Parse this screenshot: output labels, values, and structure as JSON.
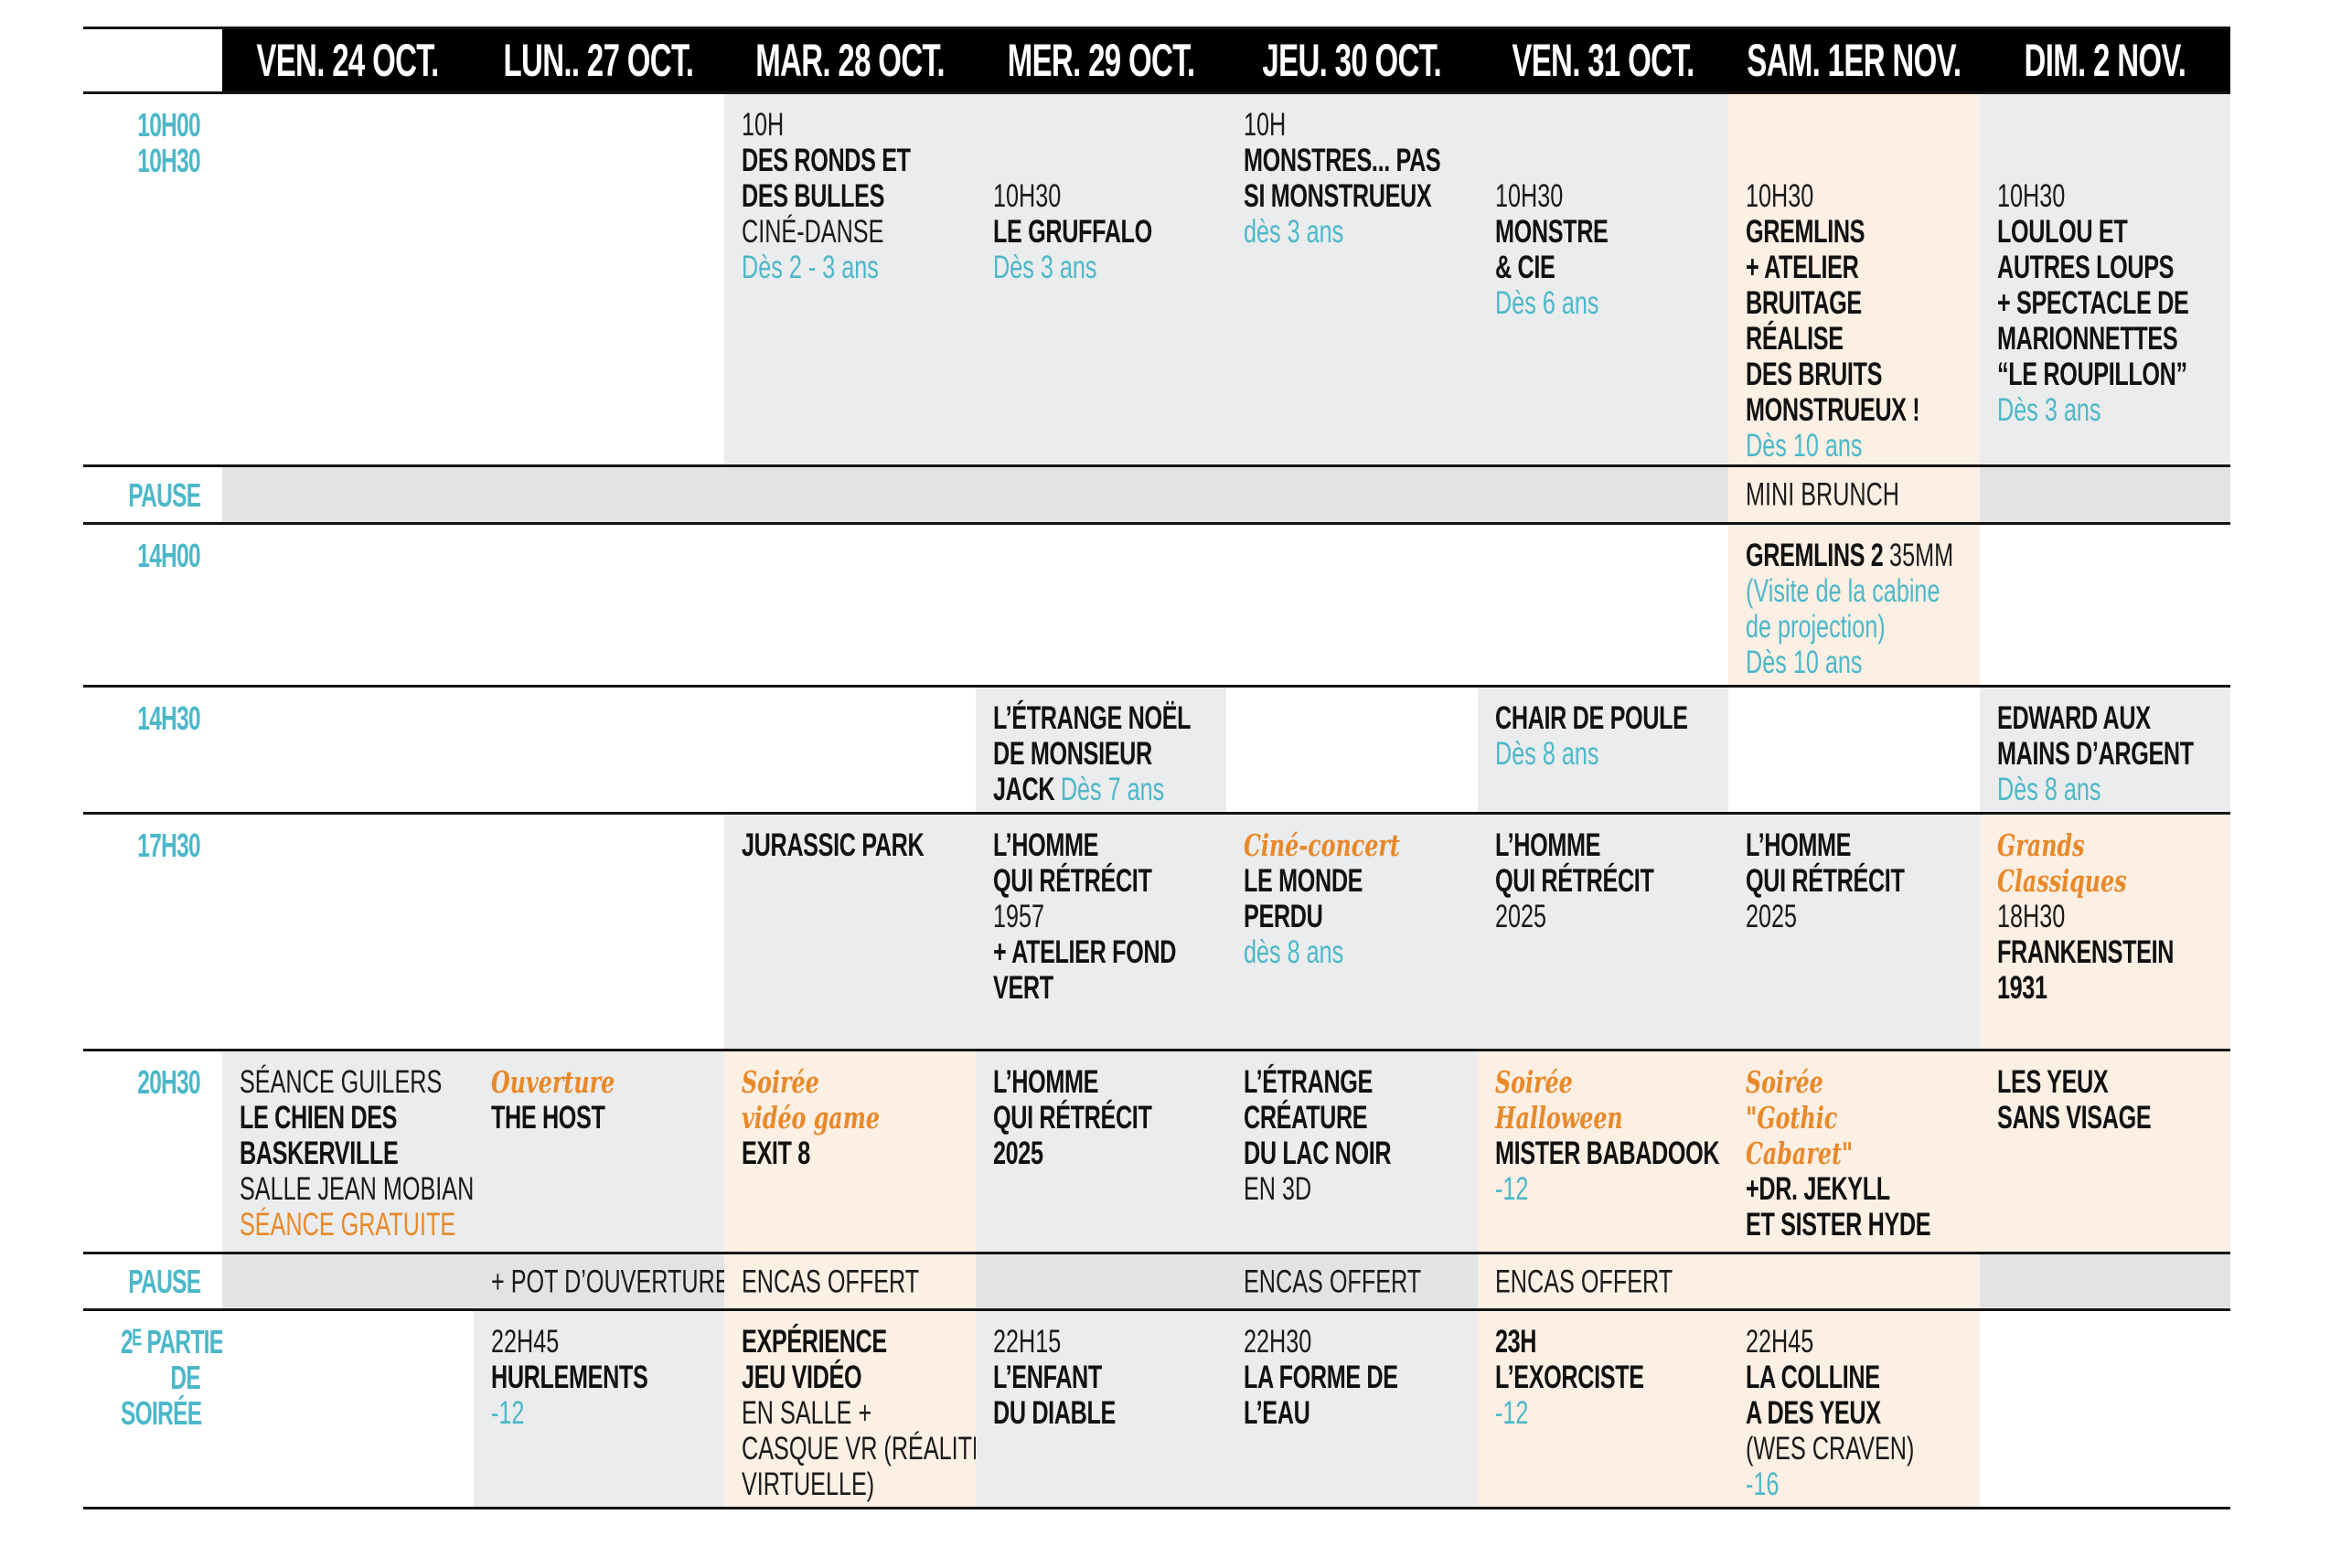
{
  "colors": {
    "teal": "#4cb8c9",
    "orange": "#e8892a",
    "grey": "#ebeced",
    "pause_grey": "#e2e3e5",
    "peach": "#fcefe4",
    "header": "#000000"
  },
  "days": [
    "VEN. 24 OCT.",
    "LUN.. 27 OCT.",
    "MAR. 28 OCT.",
    "MER. 29 OCT.",
    "JEU. 30 OCT.",
    "VEN. 31 OCT.",
    "SAM. 1ER NOV.",
    "DIM. 2 NOV."
  ],
  "rows": [
    {
      "label": [
        "10H00",
        "10H30"
      ],
      "type": "slot",
      "cells": [
        {
          "bg": "w",
          "lines": []
        },
        {
          "bg": "w",
          "lines": []
        },
        {
          "bg": "g",
          "lines": [
            [
              [
                "t",
                "10H"
              ]
            ],
            [
              [
                "b",
                "DES RONDS ET"
              ]
            ],
            [
              [
                "b",
                "DES BULLES"
              ]
            ],
            [
              [
                "l",
                "CINÉ-DANSE"
              ]
            ],
            [
              [
                "a",
                "Dès  2 - 3 ans"
              ]
            ]
          ]
        },
        {
          "bg": "g",
          "lines": [
            [
              [
                "t",
                "10H30"
              ]
            ],
            [
              [
                "b",
                "LE GRUFFALO"
              ]
            ],
            [
              [
                "a",
                "Dès 3 ans"
              ]
            ]
          ]
        },
        {
          "bg": "g",
          "lines": [
            [
              [
                "t",
                "10H"
              ]
            ],
            [
              [
                "b",
                "MONSTRES... PAS"
              ]
            ],
            [
              [
                "b",
                "SI MONSTRUEUX"
              ]
            ],
            [
              [
                "a",
                "dès 3 ans"
              ]
            ]
          ]
        },
        {
          "bg": "g",
          "lines": [
            [
              [
                "t",
                "10H30"
              ]
            ],
            [
              [
                "b",
                "MONSTRE"
              ]
            ],
            [
              [
                "b",
                "& CIE"
              ]
            ],
            [
              [
                "a",
                "Dès 6 ans"
              ]
            ]
          ]
        },
        {
          "bg": "p",
          "lines": [
            [
              [
                "t",
                "10H30"
              ]
            ],
            [
              [
                "b",
                "GREMLINS"
              ]
            ],
            [
              [
                "b",
                "+ ATELIER"
              ]
            ],
            [
              [
                "b",
                "BRUITAGE"
              ]
            ],
            [
              [
                "b",
                "RÉALISE"
              ]
            ],
            [
              [
                "b",
                "DES BRUITS"
              ]
            ],
            [
              [
                "b",
                "MONSTRUEUX !"
              ]
            ],
            [
              [
                "a",
                "Dès 10 ans"
              ]
            ]
          ]
        },
        {
          "bg": "g",
          "lines": [
            [
              [
                "t",
                "10H30"
              ]
            ],
            [
              [
                "b",
                "LOULOU ET"
              ]
            ],
            [
              [
                "b",
                "AUTRES LOUPS"
              ]
            ],
            [
              [
                "b",
                "+ SPECTACLE DE"
              ]
            ],
            [
              [
                "b",
                " MARIONNETTES"
              ]
            ],
            [
              [
                "b",
                "“LE ROUPILLON”"
              ]
            ],
            [
              [
                "a",
                "Dès 3 ans"
              ]
            ]
          ]
        }
      ]
    },
    {
      "label": [
        "PAUSE"
      ],
      "type": "pause",
      "cells": [
        {
          "bg": "g",
          "lines": []
        },
        {
          "bg": "g",
          "lines": []
        },
        {
          "bg": "g",
          "lines": []
        },
        {
          "bg": "g",
          "lines": []
        },
        {
          "bg": "g",
          "lines": []
        },
        {
          "bg": "g",
          "lines": []
        },
        {
          "bg": "p",
          "lines": [
            [
              [
                "l",
                "MINI BRUNCH"
              ]
            ]
          ]
        },
        {
          "bg": "g",
          "lines": []
        }
      ]
    },
    {
      "label": [
        "14H00"
      ],
      "type": "slot",
      "cells": [
        {
          "bg": "w",
          "lines": []
        },
        {
          "bg": "w",
          "lines": []
        },
        {
          "bg": "w",
          "lines": []
        },
        {
          "bg": "w",
          "lines": []
        },
        {
          "bg": "w",
          "lines": []
        },
        {
          "bg": "w",
          "lines": []
        },
        {
          "bg": "p",
          "lines": [
            [
              [
                "b",
                "GREMLINS 2 "
              ],
              [
                "l",
                "35MM"
              ]
            ],
            [
              [
                "a",
                "(Visite de la cabine"
              ]
            ],
            [
              [
                "a",
                "de projection)"
              ]
            ],
            [
              [
                "a",
                "Dès 10 ans"
              ]
            ]
          ]
        },
        {
          "bg": "w",
          "lines": []
        }
      ]
    },
    {
      "label": [
        "14H30"
      ],
      "type": "slot",
      "cells": [
        {
          "bg": "w",
          "lines": []
        },
        {
          "bg": "w",
          "lines": []
        },
        {
          "bg": "w",
          "lines": []
        },
        {
          "bg": "g",
          "lines": [
            [
              [
                "b",
                "L’ÉTRANGE NOËL"
              ]
            ],
            [
              [
                "b",
                "DE MONSIEUR"
              ]
            ],
            [
              [
                "b",
                "JACK "
              ],
              [
                "a",
                "Dès 7 ans"
              ]
            ]
          ]
        },
        {
          "bg": "w",
          "lines": []
        },
        {
          "bg": "g",
          "lines": [
            [
              [
                "b",
                "CHAIR DE POULE"
              ]
            ],
            [
              [
                "a",
                "Dès 8 ans"
              ]
            ]
          ]
        },
        {
          "bg": "w",
          "lines": []
        },
        {
          "bg": "g",
          "lines": [
            [
              [
                "b",
                "EDWARD AUX"
              ]
            ],
            [
              [
                "b",
                "MAINS D’ARGENT"
              ]
            ],
            [
              [
                "a",
                "Dès  8 ans"
              ]
            ]
          ]
        }
      ]
    },
    {
      "label": [
        "17H30"
      ],
      "type": "slot",
      "cells": [
        {
          "bg": "w",
          "lines": []
        },
        {
          "bg": "w",
          "lines": []
        },
        {
          "bg": "g",
          "lines": [
            [
              [
                "b",
                "JURASSIC PARK"
              ]
            ]
          ]
        },
        {
          "bg": "g",
          "lines": [
            [
              [
                "b",
                "L’HOMME"
              ]
            ],
            [
              [
                "b",
                "QUI RÉTRÉCIT"
              ]
            ],
            [
              [
                "l",
                "1957"
              ]
            ],
            [
              [
                "b",
                " + ATELIER FOND"
              ]
            ],
            [
              [
                "b",
                "VERT"
              ]
            ]
          ]
        },
        {
          "bg": "g",
          "lines": [
            [
              [
                "s",
                "Ciné-concert"
              ]
            ],
            [
              [
                "b",
                "LE MONDE"
              ]
            ],
            [
              [
                "b",
                "PERDU"
              ]
            ],
            [
              [
                "a",
                "dès 8 ans"
              ]
            ]
          ]
        },
        {
          "bg": "g",
          "lines": [
            [
              [
                "b",
                "L’HOMME"
              ]
            ],
            [
              [
                "b",
                "QUI RÉTRÉCIT"
              ]
            ],
            [
              [
                "l",
                "2025"
              ]
            ]
          ]
        },
        {
          "bg": "g",
          "lines": [
            [
              [
                "b",
                "L’HOMME"
              ]
            ],
            [
              [
                "b",
                "QUI RÉTRÉCIT"
              ]
            ],
            [
              [
                "l",
                "2025"
              ]
            ]
          ]
        },
        {
          "bg": "p",
          "lines": [
            [
              [
                "s",
                "Grands"
              ]
            ],
            [
              [
                "s",
                "Classiques"
              ]
            ],
            [
              [
                "t",
                "18H30"
              ]
            ],
            [
              [
                "b",
                "FRANKENSTEIN"
              ]
            ],
            [
              [
                "b",
                "1931"
              ]
            ]
          ]
        }
      ]
    },
    {
      "label": [
        "20H30"
      ],
      "type": "slot",
      "cells": [
        {
          "bg": "g",
          "lines": [
            [
              [
                "l",
                "SÉANCE GUILERS"
              ]
            ],
            [
              [
                "b",
                "LE CHIEN DES"
              ]
            ],
            [
              [
                "b",
                "BASKERVILLE"
              ]
            ],
            [
              [
                "l",
                "SALLE JEAN MOBIAN"
              ]
            ],
            [
              [
                "o",
                "SÉANCE GRATUITE"
              ]
            ]
          ]
        },
        {
          "bg": "g",
          "lines": [
            [
              [
                "s",
                "Ouverture"
              ]
            ],
            [
              [
                "b",
                "THE HOST"
              ]
            ]
          ]
        },
        {
          "bg": "p",
          "lines": [
            [
              [
                "s",
                "Soirée"
              ]
            ],
            [
              [
                "s",
                "vidéo game"
              ]
            ],
            [
              [
                "b",
                "EXIT 8"
              ]
            ]
          ]
        },
        {
          "bg": "g",
          "lines": [
            [
              [
                "b",
                "L’HOMME"
              ]
            ],
            [
              [
                "b",
                "QUI RÉTRÉCIT"
              ]
            ],
            [
              [
                "b",
                "2025"
              ]
            ]
          ]
        },
        {
          "bg": "g",
          "lines": [
            [
              [
                "b",
                "L’ÉTRANGE"
              ]
            ],
            [
              [
                "b",
                "CRÉATURE"
              ]
            ],
            [
              [
                "b",
                "DU LAC NOIR"
              ]
            ],
            [
              [
                "l",
                "EN 3D"
              ]
            ]
          ]
        },
        {
          "bg": "p",
          "lines": [
            [
              [
                "s",
                "Soirée"
              ]
            ],
            [
              [
                "s",
                "Halloween"
              ]
            ],
            [
              [
                "b",
                "MISTER BABADOOK"
              ]
            ],
            [
              [
                "a",
                "-12"
              ]
            ]
          ]
        },
        {
          "bg": "p",
          "lines": [
            [
              [
                "s",
                "Soirée"
              ]
            ],
            [
              [
                "s",
                "\"Gothic"
              ]
            ],
            [
              [
                "s",
                "Cabaret\""
              ]
            ],
            [
              [
                "b",
                "+DR. JEKYLL"
              ]
            ],
            [
              [
                "b",
                "ET SISTER HYDE"
              ]
            ]
          ]
        },
        {
          "bg": "p",
          "lines": [
            [
              [
                "b",
                "LES YEUX"
              ]
            ],
            [
              [
                "b",
                "SANS VISAGE"
              ]
            ]
          ]
        }
      ]
    },
    {
      "label": [
        "PAUSE"
      ],
      "type": "pause",
      "cells": [
        {
          "bg": "g",
          "lines": []
        },
        {
          "bg": "g",
          "lines": [
            [
              [
                "l",
                "+ POT D’OUVERTURE"
              ]
            ]
          ]
        },
        {
          "bg": "p",
          "lines": [
            [
              [
                "l",
                "ENCAS OFFERT"
              ]
            ]
          ]
        },
        {
          "bg": "g",
          "lines": []
        },
        {
          "bg": "g",
          "lines": [
            [
              [
                "l",
                "ENCAS OFFERT"
              ]
            ]
          ]
        },
        {
          "bg": "p",
          "lines": [
            [
              [
                "l",
                "ENCAS OFFERT"
              ]
            ]
          ]
        },
        {
          "bg": "p",
          "lines": []
        },
        {
          "bg": "g",
          "lines": []
        }
      ]
    },
    {
      "label": [
        "2ᴱ PARTIE",
        "DE",
        "SOIRÉE"
      ],
      "type": "slot",
      "cells": [
        {
          "bg": "w",
          "lines": []
        },
        {
          "bg": "g",
          "lines": [
            [
              [
                "t",
                "22H45"
              ]
            ],
            [
              [
                "b",
                "HURLEMENTS"
              ]
            ],
            [
              [
                "a",
                "-12"
              ]
            ]
          ]
        },
        {
          "bg": "p",
          "lines": [
            [
              [
                "b",
                "EXPÉRIENCE"
              ]
            ],
            [
              [
                "b",
                "JEU VIDÉO"
              ]
            ],
            [
              [
                "l",
                "EN SALLE +"
              ]
            ],
            [
              [
                "l",
                "CASQUE VR (RÉALITÉ"
              ]
            ],
            [
              [
                "l",
                "VIRTUELLE)"
              ]
            ]
          ]
        },
        {
          "bg": "g",
          "lines": [
            [
              [
                "t",
                "22H15"
              ]
            ],
            [
              [
                "b",
                "L’ENFANT"
              ]
            ],
            [
              [
                "b",
                "DU DIABLE"
              ]
            ]
          ]
        },
        {
          "bg": "g",
          "lines": [
            [
              [
                "t",
                "22H30"
              ]
            ],
            [
              [
                "b",
                "LA FORME DE"
              ]
            ],
            [
              [
                "b",
                "L’EAU"
              ]
            ]
          ]
        },
        {
          "bg": "p",
          "lines": [
            [
              [
                "b",
                "23H"
              ]
            ],
            [
              [
                "b",
                "L’EXORCISTE"
              ]
            ],
            [
              [
                "a",
                "-12"
              ]
            ]
          ]
        },
        {
          "bg": "p",
          "lines": [
            [
              [
                "t",
                "22H45"
              ]
            ],
            [
              [
                "b",
                "LA COLLINE"
              ]
            ],
            [
              [
                "b",
                "A DES YEUX"
              ]
            ],
            [
              [
                "l",
                "(WES CRAVEN)"
              ]
            ],
            [
              [
                "a",
                "-16"
              ]
            ]
          ]
        },
        {
          "bg": "w",
          "lines": []
        }
      ]
    }
  ]
}
